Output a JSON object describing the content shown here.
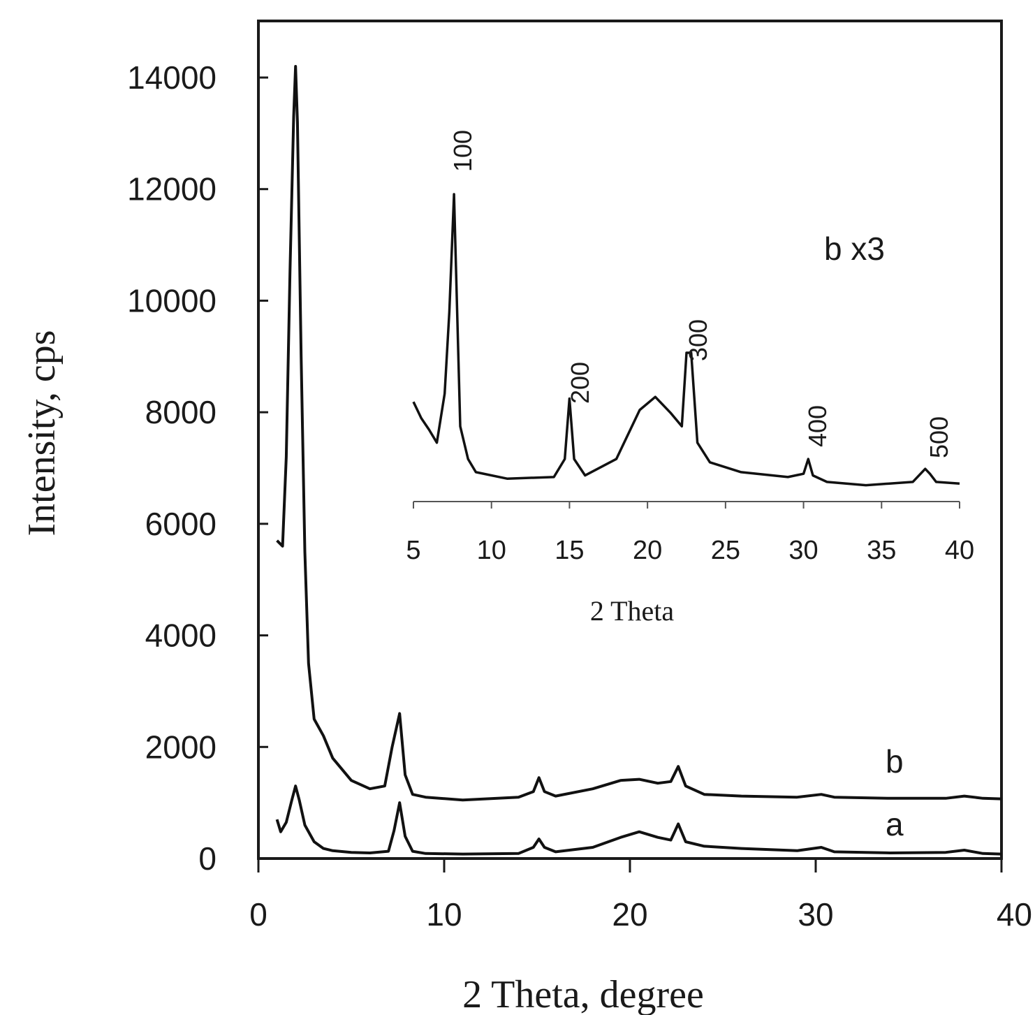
{
  "chart_data": [
    {
      "type": "line",
      "xlabel": "2 Theta, degree",
      "ylabel": "Intensity, cps",
      "xlim": [
        0,
        40
      ],
      "ylim": [
        0,
        15000
      ],
      "xticks": [
        0,
        10,
        20,
        30,
        40
      ],
      "yticks": [
        0,
        2000,
        4000,
        6000,
        8000,
        10000,
        12000,
        14000
      ],
      "grid": false,
      "series": [
        {
          "name": "a",
          "x": [
            1.0,
            1.2,
            1.5,
            1.8,
            2.0,
            2.2,
            2.5,
            3.0,
            3.5,
            4.0,
            5.0,
            6.0,
            7.0,
            7.3,
            7.6,
            7.9,
            8.3,
            9.0,
            11.0,
            14.0,
            14.8,
            15.1,
            15.4,
            16.0,
            18.0,
            19.5,
            20.5,
            21.5,
            22.2,
            22.6,
            23.0,
            24.0,
            26.0,
            29.0,
            30.3,
            31.0,
            34.0,
            37.0,
            38.0,
            39.0,
            40.0
          ],
          "values": [
            700,
            480,
            650,
            1050,
            1300,
            1050,
            600,
            300,
            180,
            140,
            110,
            100,
            130,
            500,
            1000,
            400,
            130,
            90,
            80,
            90,
            200,
            350,
            200,
            120,
            200,
            380,
            480,
            380,
            330,
            620,
            300,
            220,
            180,
            140,
            200,
            120,
            100,
            110,
            150,
            90,
            80
          ]
        },
        {
          "name": "b",
          "x": [
            1.0,
            1.3,
            1.5,
            1.7,
            1.9,
            2.0,
            2.1,
            2.3,
            2.5,
            2.7,
            3.0,
            3.5,
            4.0,
            5.0,
            6.0,
            6.8,
            7.2,
            7.6,
            7.9,
            8.3,
            9.0,
            11.0,
            14.0,
            14.8,
            15.1,
            15.4,
            16.0,
            18.0,
            19.5,
            20.5,
            21.5,
            22.2,
            22.6,
            23.0,
            24.0,
            26.0,
            29.0,
            30.3,
            31.0,
            34.0,
            37.0,
            38.0,
            39.0,
            40.0
          ],
          "values": [
            5700,
            5600,
            7200,
            10500,
            13300,
            14200,
            13200,
            9000,
            5500,
            3500,
            2500,
            2200,
            1800,
            1400,
            1250,
            1300,
            2000,
            2600,
            1500,
            1150,
            1100,
            1050,
            1100,
            1200,
            1450,
            1200,
            1120,
            1250,
            1400,
            1420,
            1350,
            1380,
            1650,
            1300,
            1150,
            1120,
            1100,
            1150,
            1100,
            1080,
            1080,
            1120,
            1080,
            1070
          ]
        }
      ],
      "series_labels": [
        "a",
        "b"
      ]
    },
    {
      "type": "line",
      "title": "b x3",
      "xlabel": "2  Theta",
      "ylabel": "",
      "xlim": [
        5,
        40
      ],
      "xticks": [
        5,
        10,
        15,
        20,
        25,
        30,
        35,
        40
      ],
      "grid": false,
      "series": [
        {
          "name": "",
          "x": [
            5.0,
            5.5,
            6.0,
            6.5,
            7.0,
            7.3,
            7.6,
            7.8,
            8.0,
            8.5,
            9.0,
            11.0,
            14.0,
            14.7,
            15.0,
            15.3,
            16.0,
            18.0,
            19.5,
            20.5,
            21.5,
            22.2,
            22.5,
            22.8,
            23.2,
            24.0,
            26.0,
            29.0,
            30.0,
            30.3,
            30.6,
            31.5,
            34.0,
            37.0,
            37.8,
            38.1,
            38.5,
            40.0
          ],
          "values": [
            1250,
            1150,
            1080,
            1000,
            1300,
            1800,
            2520,
            1800,
            1100,
            900,
            820,
            780,
            790,
            900,
            1270,
            900,
            800,
            900,
            1200,
            1280,
            1180,
            1100,
            1550,
            1550,
            1000,
            880,
            820,
            790,
            810,
            900,
            800,
            760,
            740,
            760,
            840,
            810,
            760,
            750
          ]
        }
      ],
      "annotations": [
        "100",
        "200",
        "300",
        "400",
        "500"
      ]
    }
  ]
}
